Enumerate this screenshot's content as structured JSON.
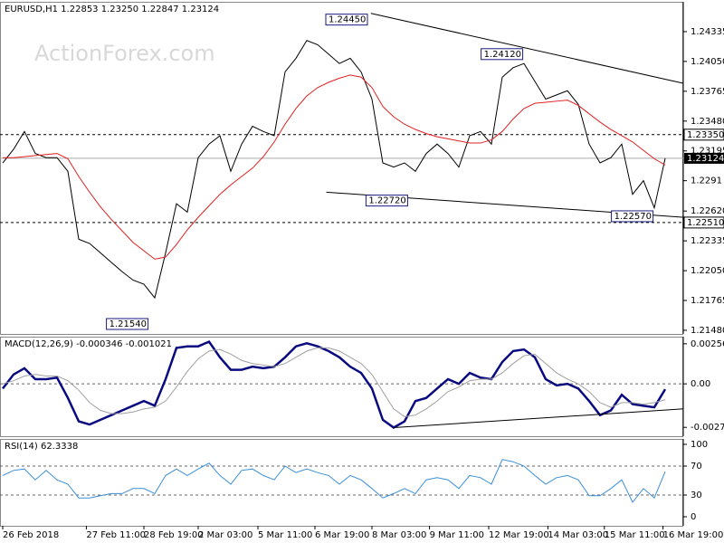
{
  "watermark": "ActionForex.com",
  "chart_data": [
    {
      "type": "line",
      "title": "EURUSD,H1  1.22853 1.23250 1.22847 1.23124",
      "series": [
        {
          "name": "Price",
          "color": "#000000",
          "values": [
            1.2308,
            1.2321,
            1.2338,
            1.2317,
            1.2313,
            1.2313,
            1.23,
            1.2235,
            1.2231,
            1.2222,
            1.2213,
            1.2204,
            1.2196,
            1.2192,
            1.2179,
            1.2222,
            1.2269,
            1.2261,
            1.2313,
            1.2326,
            1.2334,
            1.23,
            1.2326,
            1.2343,
            1.2338,
            1.2334,
            1.2395,
            1.2408,
            1.2425,
            1.2421,
            1.2412,
            1.2403,
            1.2408,
            1.2395,
            1.2369,
            1.2308,
            1.2304,
            1.2308,
            1.23,
            1.2317,
            1.2326,
            1.2317,
            1.2304,
            1.2334,
            1.2338,
            1.2326,
            1.239,
            1.2399,
            1.2403,
            1.2386,
            1.2369,
            1.2373,
            1.2377,
            1.2364,
            1.2326,
            1.2308,
            1.2313,
            1.2326,
            1.2278,
            1.2291,
            1.2265,
            1.23124
          ]
        },
        {
          "name": "MA",
          "color": "#e02020",
          "values": [
            1.2313,
            1.2313,
            1.2314,
            1.2315,
            1.2316,
            1.2317,
            1.2312,
            1.2295,
            1.228,
            1.2266,
            1.2254,
            1.2243,
            1.2232,
            1.2224,
            1.2216,
            1.2218,
            1.223,
            1.2244,
            1.2256,
            1.2267,
            1.2278,
            1.2287,
            1.2295,
            1.2303,
            1.2314,
            1.2328,
            1.2345,
            1.236,
            1.2372,
            1.238,
            1.2385,
            1.2389,
            1.2392,
            1.239,
            1.238,
            1.2362,
            1.2352,
            1.2345,
            1.234,
            1.2336,
            1.2333,
            1.2331,
            1.2329,
            1.2327,
            1.2327,
            1.233,
            1.2338,
            1.235,
            1.236,
            1.2365,
            1.2366,
            1.2367,
            1.2368,
            1.2363,
            1.2355,
            1.2347,
            1.234,
            1.2334,
            1.2328,
            1.232,
            1.2312,
            1.2306
          ]
        }
      ],
      "ylim": [
        1.21445,
        1.2462
      ],
      "yticks": [
        1.24335,
        {
          "value": 1.2405,
          "label": "1.24050"
        },
        1.23765,
        {
          "value": 1.2348,
          "label": "1.23480"
        },
        1.23195,
        1.2291,
        {
          "value": 1.2262,
          "label": "1.22620"
        },
        1.22335,
        {
          "value": 1.2205,
          "label": "1.22050"
        },
        1.21765,
        {
          "value": 1.2148,
          "label": "1.21480"
        }
      ],
      "levels": [
        {
          "value": 1.2335,
          "label": "1.23350"
        },
        {
          "value": 1.2251,
          "label": "1.22510"
        }
      ],
      "last_price": {
        "value": 1.23124,
        "label": "1.23124"
      },
      "annotations": [
        {
          "x": 30,
          "value": 1.2445,
          "label": "1.24450"
        },
        {
          "x": 44.3,
          "value": 1.2412,
          "label": "1.24120"
        },
        {
          "x": 33.7,
          "value": 1.2272,
          "label": "1.22720"
        },
        {
          "x": 56.3,
          "value": 1.2257,
          "label": "1.22570"
        },
        {
          "x": 9.8,
          "value": 1.2154,
          "label": "1.21540"
        }
      ],
      "trendlines": [
        {
          "x": [
            33.9,
            62.7
          ],
          "y": [
            1.2451,
            1.2384
          ]
        },
        {
          "x": [
            29.8,
            62.7
          ],
          "y": [
            1.228,
            1.2256
          ]
        }
      ]
    },
    {
      "type": "line",
      "title": "MACD(12,26,9) -0.000346 -0.001021",
      "series": [
        {
          "name": "MACD",
          "color": "#0a0a80",
          "values": [
            -0.0003,
            0.0006,
            0.001,
            0.0003,
            0.0003,
            0.0004,
            -0.0009,
            -0.0024,
            -0.0026,
            -0.0023,
            -0.002,
            -0.0017,
            -0.0014,
            -0.0011,
            -0.0014,
            0.0003,
            0.0023,
            0.0024,
            0.0024,
            0.0027,
            0.0017,
            0.0009,
            0.0009,
            0.0011,
            0.001,
            0.0011,
            0.0017,
            0.0024,
            0.0026,
            0.0024,
            0.0021,
            0.0017,
            0.0011,
            0.0007,
            -0.0003,
            -0.0023,
            -0.0028,
            -0.0024,
            -0.0011,
            -0.0009,
            -0.0003,
            0.0003,
            0,
            0.0007,
            0.0004,
            0.0003,
            0.0014,
            0.0021,
            0.0022,
            0.0017,
            0.0003,
            -0.0001,
            0,
            -0.0003,
            -0.0011,
            -0.002,
            -0.0017,
            -0.0007,
            -0.0013,
            -0.0014,
            -0.0015,
            -0.000346
          ]
        },
        {
          "name": "Signal",
          "color": "#a0a0a0",
          "values": [
            0,
            0.0002,
            0.0005,
            0.0006,
            0.0005,
            0.0005,
            0.0002,
            -0.0004,
            -0.0012,
            -0.0017,
            -0.0019,
            -0.0019,
            -0.0018,
            -0.0016,
            -0.0015,
            -0.0011,
            -0.0002,
            0.0008,
            0.0016,
            0.0021,
            0.0022,
            0.0019,
            0.0015,
            0.0013,
            0.0012,
            0.0011,
            0.0013,
            0.0017,
            0.0021,
            0.0023,
            0.0023,
            0.0021,
            0.0017,
            0.0013,
            0.0006,
            -0.0005,
            -0.0016,
            -0.0021,
            -0.002,
            -0.0016,
            -0.0011,
            -0.0005,
            -0.0002,
            0.0002,
            0.0003,
            0.0003,
            0.0007,
            0.0013,
            0.0018,
            0.0019,
            0.0013,
            0.0007,
            0.0003,
            0,
            -0.0005,
            -0.0012,
            -0.0015,
            -0.0012,
            -0.0012,
            -0.0013,
            -0.0012,
            -0.001021
          ]
        }
      ],
      "ylim": [
        -0.00335,
        0.00302
      ],
      "yticks": [
        0.002564,
        {
          "value": 0,
          "label": "0.00"
        },
        -0.002783
      ],
      "levels": [
        {
          "value": 0
        }
      ],
      "trendlines": [
        {
          "x": [
            36,
            62.7
          ],
          "y": [
            -0.0028,
            -0.0016
          ]
        }
      ]
    },
    {
      "type": "line",
      "title": "RSI(14) 62.3338",
      "series": [
        {
          "name": "RSI",
          "color": "#3a8fd8",
          "values": [
            57,
            64,
            66,
            51,
            64,
            51,
            45,
            26,
            26,
            29,
            32,
            32,
            39,
            39,
            32,
            57,
            66,
            57,
            66,
            74,
            57,
            45,
            64,
            66,
            57,
            51,
            70,
            61,
            66,
            61,
            57,
            45,
            57,
            51,
            39,
            26,
            32,
            39,
            32,
            51,
            54,
            51,
            39,
            57,
            54,
            45,
            79,
            76,
            70,
            57,
            45,
            54,
            57,
            51,
            29,
            29,
            39,
            51,
            20,
            39,
            26,
            62.3338
          ]
        }
      ],
      "ylim": [
        -12.5,
        107.5
      ],
      "yticks": [
        100,
        70,
        30,
        0
      ],
      "levels": [
        {
          "value": 70
        },
        {
          "value": 30
        }
      ],
      "xticks": [
        {
          "value": 0,
          "label": "26 Feb 2018"
        },
        {
          "value": 7.7,
          "label": "27 Feb 11:00"
        },
        {
          "value": 13,
          "label": "28 Feb 19:00"
        },
        {
          "value": 18,
          "label": "2 Mar 03:00"
        },
        {
          "value": 23.5,
          "label": "5 Mar 11:00"
        },
        {
          "value": 28.75,
          "label": "6 Mar 19:00"
        },
        {
          "value": 34,
          "label": "8 Mar 03:00"
        },
        {
          "value": 39.3,
          "label": "9 Mar 11:00"
        },
        {
          "value": 44.75,
          "label": "12 Mar 19:00"
        },
        {
          "value": 50.2,
          "label": "14 Mar 03:00"
        },
        {
          "value": 55.4,
          "label": "15 Mar 11:00"
        },
        {
          "value": 60.8,
          "label": "16 Mar 19:00"
        }
      ]
    }
  ]
}
